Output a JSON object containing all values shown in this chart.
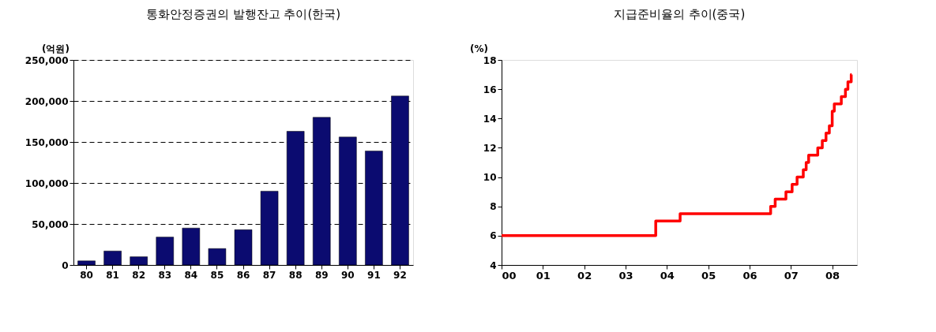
{
  "chart_data": [
    {
      "type": "bar",
      "title": "통화안정증권의 발행잔고 추이(한국)",
      "ylabel": "(억원)",
      "categories": [
        "80",
        "81",
        "82",
        "83",
        "84",
        "85",
        "86",
        "87",
        "88",
        "89",
        "90",
        "91",
        "92"
      ],
      "values": [
        5000,
        17000,
        10000,
        34000,
        45000,
        20000,
        43000,
        90000,
        163000,
        180000,
        156000,
        139000,
        206000
      ],
      "color": "#0b0b70",
      "ylim": [
        0,
        250000
      ],
      "yticks": [
        {
          "value": 0,
          "label": "0"
        },
        {
          "value": 50000,
          "label": "50,000"
        },
        {
          "value": 100000,
          "label": "100,000"
        },
        {
          "value": 150000,
          "label": "150,000"
        },
        {
          "value": 200000,
          "label": "200,000"
        },
        {
          "value": 250000,
          "label": "250,000"
        }
      ],
      "grid": "y"
    },
    {
      "type": "step",
      "title": "지급준비율의 추이(중국)",
      "ylabel": "(%)",
      "x": [
        0,
        3.73,
        4.32,
        6.51,
        6.62,
        6.88,
        7.03,
        7.15,
        7.3,
        7.37,
        7.43,
        7.65,
        7.76,
        7.85,
        7.93,
        8.0,
        8.05,
        8.22,
        8.32,
        8.38,
        8.46,
        8.47
      ],
      "values": [
        6,
        7,
        7.5,
        8,
        8.5,
        9,
        9.5,
        10,
        10.5,
        11,
        11.5,
        12,
        12.5,
        13,
        13.5,
        14.5,
        15,
        15.5,
        16,
        16.5,
        17,
        17
      ],
      "color": "#ff0000",
      "ylim": [
        4,
        18
      ],
      "yticks": [
        4,
        6,
        8,
        10,
        12,
        14,
        16,
        18
      ],
      "xlim": [
        0,
        8.6
      ],
      "xticks": [
        {
          "value": 0,
          "label": "00"
        },
        {
          "value": 1,
          "label": "01"
        },
        {
          "value": 2,
          "label": "02"
        },
        {
          "value": 3,
          "label": "03"
        },
        {
          "value": 4,
          "label": "04"
        },
        {
          "value": 5,
          "label": "05"
        },
        {
          "value": 6,
          "label": "06"
        },
        {
          "value": 7,
          "label": "07"
        },
        {
          "value": 8,
          "label": "08"
        }
      ],
      "line_style": "solid",
      "marker": "none",
      "grid": false
    }
  ]
}
